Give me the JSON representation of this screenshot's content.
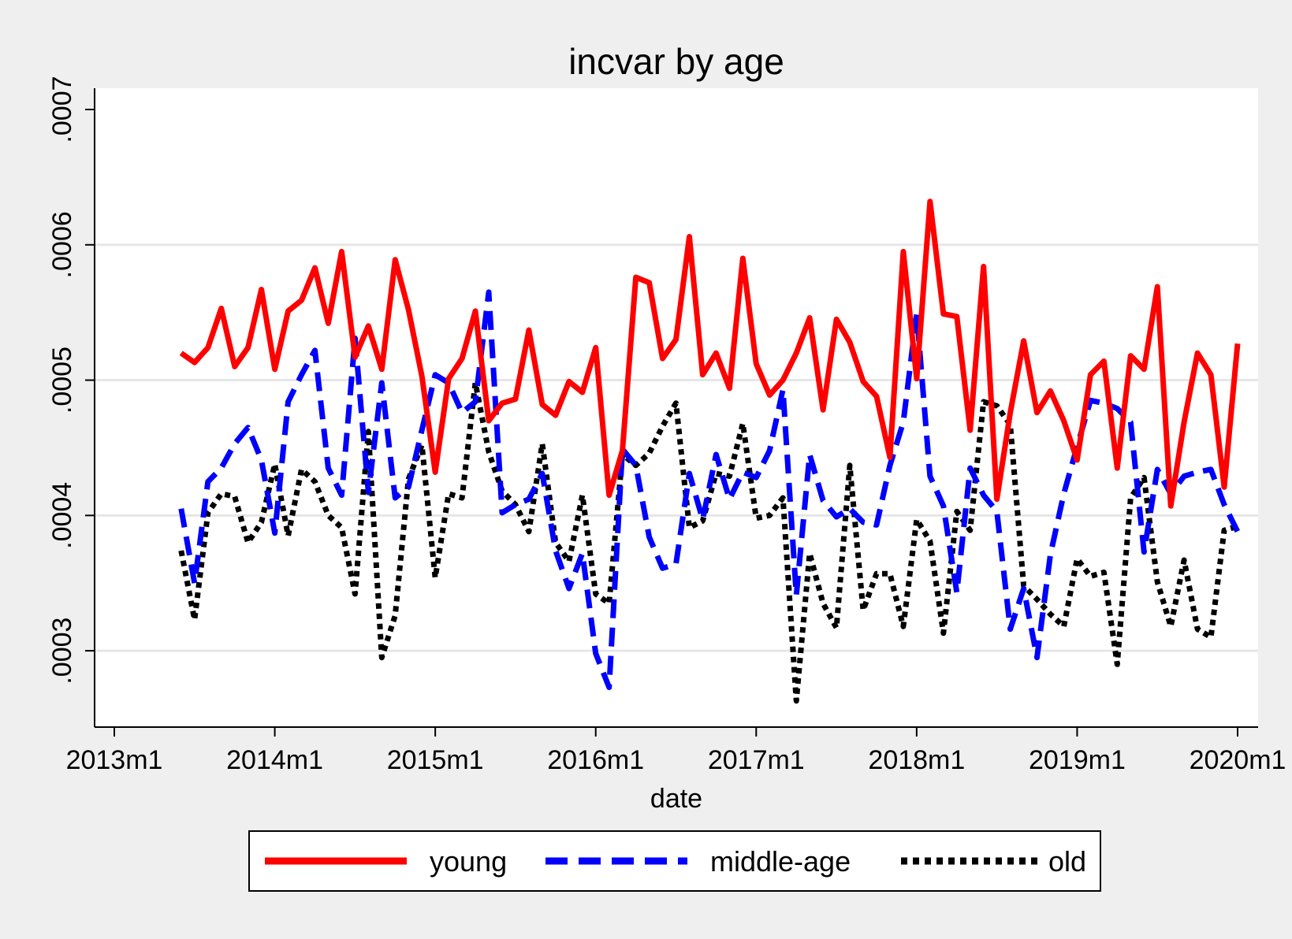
{
  "chart_data": {
    "type": "line",
    "title": "incvar by age",
    "xlabel": "date",
    "ylabel": "",
    "x_range": [
      "2013m1",
      "2020m1"
    ],
    "ylim": [
      0.00025,
      0.0007
    ],
    "x_ticks": [
      {
        "date": "2013-01",
        "label": "2013m1"
      },
      {
        "date": "2014-01",
        "label": "2014m1"
      },
      {
        "date": "2015-01",
        "label": "2015m1"
      },
      {
        "date": "2016-01",
        "label": "2016m1"
      },
      {
        "date": "2017-01",
        "label": "2017m1"
      },
      {
        "date": "2018-01",
        "label": "2018m1"
      },
      {
        "date": "2019-01",
        "label": "2019m1"
      },
      {
        "date": "2020-01",
        "label": "2020m1"
      }
    ],
    "y_ticks": [
      {
        "value": 0.0003,
        "label": ".0003"
      },
      {
        "value": 0.0004,
        "label": ".0004"
      },
      {
        "value": 0.0005,
        "label": ".0005"
      },
      {
        "value": 0.0006,
        "label": ".0006"
      },
      {
        "value": 0.0007,
        "label": ".0007"
      }
    ],
    "grid": true,
    "legend_position": "bottom",
    "x": [
      "2013-06",
      "2013-07",
      "2013-08",
      "2013-09",
      "2013-10",
      "2013-11",
      "2013-12",
      "2014-01",
      "2014-02",
      "2014-03",
      "2014-04",
      "2014-05",
      "2014-06",
      "2014-07",
      "2014-08",
      "2014-09",
      "2014-10",
      "2014-11",
      "2014-12",
      "2015-01",
      "2015-02",
      "2015-03",
      "2015-04",
      "2015-05",
      "2015-06",
      "2015-07",
      "2015-08",
      "2015-09",
      "2015-10",
      "2015-11",
      "2015-12",
      "2016-01",
      "2016-02",
      "2016-03",
      "2016-04",
      "2016-05",
      "2016-06",
      "2016-07",
      "2016-08",
      "2016-09",
      "2016-10",
      "2016-11",
      "2016-12",
      "2017-01",
      "2017-02",
      "2017-03",
      "2017-04",
      "2017-05",
      "2017-06",
      "2017-07",
      "2017-08",
      "2017-09",
      "2017-10",
      "2017-11",
      "2017-12",
      "2018-01",
      "2018-02",
      "2018-03",
      "2018-04",
      "2018-05",
      "2018-06",
      "2018-07",
      "2018-08",
      "2018-09",
      "2018-10",
      "2018-11",
      "2018-12",
      "2019-01",
      "2019-02",
      "2019-03",
      "2019-04",
      "2019-05",
      "2019-06",
      "2019-07",
      "2019-08",
      "2019-09",
      "2019-10",
      "2019-11",
      "2019-12",
      "2020-01"
    ],
    "series": [
      {
        "name": "young",
        "color": "#ff0000",
        "style": "solid",
        "values": [
          0.00052,
          0.000513,
          0.000524,
          0.000553,
          0.00051,
          0.000524,
          0.000567,
          0.000508,
          0.000551,
          0.000559,
          0.000583,
          0.000542,
          0.000595,
          0.000517,
          0.00054,
          0.000508,
          0.000589,
          0.000552,
          0.000503,
          0.000432,
          0.000501,
          0.000516,
          0.000551,
          0.00047,
          0.000483,
          0.000486,
          0.000537,
          0.000482,
          0.000474,
          0.000499,
          0.000491,
          0.000524,
          0.000415,
          0.000448,
          0.000576,
          0.000572,
          0.000516,
          0.00053,
          0.000606,
          0.000504,
          0.00052,
          0.000494,
          0.00059,
          0.000512,
          0.000489,
          0.0005,
          0.00052,
          0.000546,
          0.000478,
          0.000545,
          0.000528,
          0.000499,
          0.000488,
          0.000443,
          0.000595,
          0.000501,
          0.000632,
          0.000549,
          0.000547,
          0.000463,
          0.000584,
          0.000412,
          0.000476,
          0.000529,
          0.000476,
          0.000492,
          0.00047,
          0.000441,
          0.000504,
          0.000514,
          0.000435,
          0.000518,
          0.000508,
          0.000569,
          0.000407,
          0.000469,
          0.00052,
          0.000504,
          0.000421,
          0.000527
        ]
      },
      {
        "name": "middle-age",
        "color": "#0000ff",
        "style": "dashed",
        "values": [
          0.000405,
          0.00035,
          0.000425,
          0.000435,
          0.000453,
          0.000465,
          0.000441,
          0.000387,
          0.000484,
          0.000504,
          0.000522,
          0.000435,
          0.000415,
          0.000531,
          0.000417,
          0.000498,
          0.000413,
          0.000421,
          0.000463,
          0.000504,
          0.000498,
          0.000476,
          0.000484,
          0.000565,
          0.000402,
          0.000408,
          0.000412,
          0.000431,
          0.000374,
          0.000346,
          0.000372,
          0.000298,
          0.000273,
          0.000449,
          0.000437,
          0.000384,
          0.000361,
          0.000364,
          0.000431,
          0.000397,
          0.000445,
          0.000412,
          0.000432,
          0.000428,
          0.000448,
          0.000493,
          0.000341,
          0.000445,
          0.000411,
          0.000399,
          0.000405,
          0.000395,
          0.000393,
          0.000437,
          0.000469,
          0.000549,
          0.000429,
          0.000407,
          0.000343,
          0.000435,
          0.000415,
          0.000403,
          0.000316,
          0.000346,
          0.000295,
          0.000371,
          0.000416,
          0.000451,
          0.000485,
          0.000483,
          0.000479,
          0.000469,
          0.000373,
          0.000434,
          0.000416,
          0.000429,
          0.000432,
          0.000434,
          0.000408,
          0.000388
        ]
      },
      {
        "name": "old",
        "color": "#000000",
        "style": "dotted",
        "values": [
          0.000374,
          0.000323,
          0.000402,
          0.000416,
          0.000414,
          0.00038,
          0.000395,
          0.000438,
          0.000385,
          0.000434,
          0.000425,
          0.0004,
          0.000391,
          0.000342,
          0.000462,
          0.000295,
          0.000326,
          0.000427,
          0.000452,
          0.000354,
          0.000416,
          0.000413,
          0.000498,
          0.000447,
          0.000418,
          0.000408,
          0.000388,
          0.000453,
          0.00038,
          0.000366,
          0.000415,
          0.000342,
          0.000335,
          0.000445,
          0.000437,
          0.000446,
          0.000466,
          0.000483,
          0.000391,
          0.000396,
          0.000431,
          0.000429,
          0.000468,
          0.000398,
          0.0004,
          0.000413,
          0.000263,
          0.000372,
          0.000335,
          0.000317,
          0.000437,
          0.00033,
          0.000357,
          0.000357,
          0.000318,
          0.000397,
          0.000381,
          0.000313,
          0.000403,
          0.000389,
          0.000484,
          0.000481,
          0.000467,
          0.000348,
          0.000338,
          0.000327,
          0.000318,
          0.000368,
          0.000355,
          0.000358,
          0.00029,
          0.000413,
          0.000428,
          0.000351,
          0.000318,
          0.000367,
          0.000316,
          0.00031,
          0.000389,
          0.000392
        ]
      }
    ]
  }
}
